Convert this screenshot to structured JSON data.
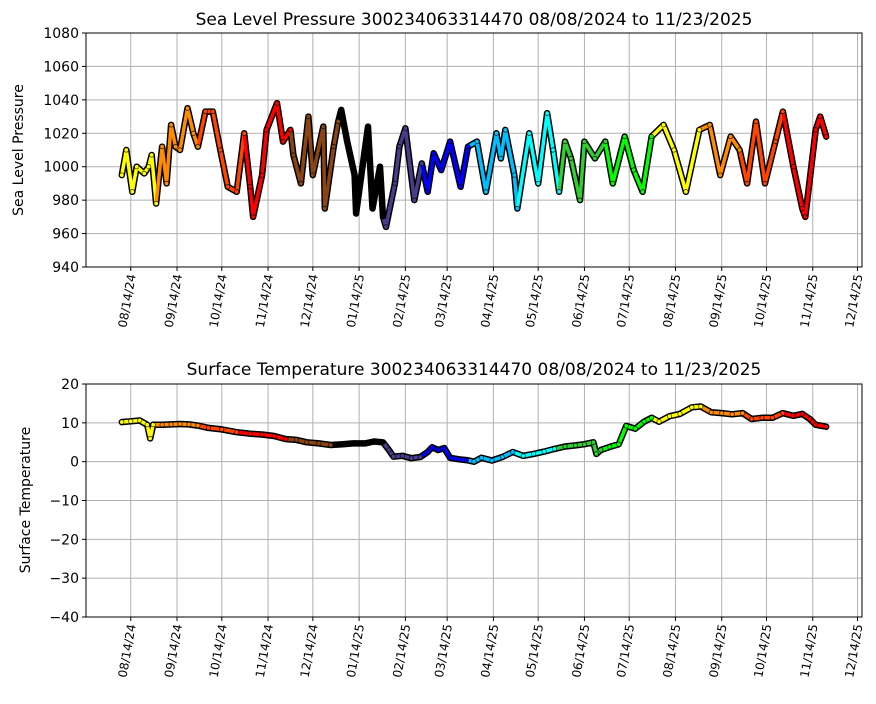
{
  "chart_data": [
    {
      "type": "scatter",
      "title": "Sea Level Pressure 300234063314470  08/08/2024 to 11/23/2025",
      "xlabel": "",
      "ylabel": "Sea Level Pressure",
      "ylim": [
        940,
        1080
      ],
      "yticks": [
        940,
        960,
        980,
        1000,
        1020,
        1040,
        1060,
        1080
      ],
      "xlim": [
        "2024-07-15",
        "2025-12-17"
      ],
      "grid": true,
      "points": [
        [
          "2024-08-08",
          995
        ],
        [
          "2024-08-11",
          1010
        ],
        [
          "2024-08-15",
          985
        ],
        [
          "2024-08-18",
          1000
        ],
        [
          "2024-08-23",
          996
        ],
        [
          "2024-08-26",
          1000
        ],
        [
          "2024-08-28",
          1007
        ],
        [
          "2024-08-31",
          978
        ],
        [
          "2024-09-04",
          1012
        ],
        [
          "2024-09-07",
          990
        ],
        [
          "2024-09-10",
          1025
        ],
        [
          "2024-09-13",
          1012
        ],
        [
          "2024-09-16",
          1010
        ],
        [
          "2024-09-21",
          1035
        ],
        [
          "2024-09-25",
          1020
        ],
        [
          "2024-09-28",
          1012
        ],
        [
          "2024-10-03",
          1033
        ],
        [
          "2024-10-08",
          1033
        ],
        [
          "2024-10-13",
          1010
        ],
        [
          "2024-10-18",
          988
        ],
        [
          "2024-10-24",
          985
        ],
        [
          "2024-10-29",
          1020
        ],
        [
          "2024-11-02",
          988
        ],
        [
          "2024-11-04",
          970
        ],
        [
          "2024-11-10",
          995
        ],
        [
          "2024-11-13",
          1022
        ],
        [
          "2024-11-20",
          1038
        ],
        [
          "2024-11-24",
          1015
        ],
        [
          "2024-11-29",
          1022
        ],
        [
          "2024-12-01",
          1007
        ],
        [
          "2024-12-06",
          990
        ],
        [
          "2024-12-11",
          1030
        ],
        [
          "2024-12-14",
          995
        ],
        [
          "2024-12-21",
          1024
        ],
        [
          "2024-12-22",
          975
        ],
        [
          "2024-12-28",
          1012
        ],
        [
          "2024-12-31",
          1027
        ],
        [
          "2025-01-02",
          1034
        ],
        [
          "2025-01-06",
          1015
        ],
        [
          "2025-01-11",
          995
        ],
        [
          "2025-01-12",
          972
        ],
        [
          "2025-01-20",
          1024
        ],
        [
          "2025-01-23",
          975
        ],
        [
          "2025-01-28",
          1000
        ],
        [
          "2025-01-30",
          970
        ],
        [
          "2025-02-01",
          964
        ],
        [
          "2025-02-07",
          990
        ],
        [
          "2025-02-10",
          1012
        ],
        [
          "2025-02-14",
          1023
        ],
        [
          "2025-02-20",
          980
        ],
        [
          "2025-02-25",
          1002
        ],
        [
          "2025-03-01",
          985
        ],
        [
          "2025-03-05",
          1008
        ],
        [
          "2025-03-10",
          998
        ],
        [
          "2025-03-16",
          1015
        ],
        [
          "2025-03-23",
          988
        ],
        [
          "2025-03-28",
          1012
        ],
        [
          "2025-04-03",
          1015
        ],
        [
          "2025-04-09",
          985
        ],
        [
          "2025-04-16",
          1020
        ],
        [
          "2025-04-19",
          1005
        ],
        [
          "2025-04-22",
          1022
        ],
        [
          "2025-04-28",
          995
        ],
        [
          "2025-04-30",
          975
        ],
        [
          "2025-05-08",
          1020
        ],
        [
          "2025-05-14",
          990
        ],
        [
          "2025-05-20",
          1032
        ],
        [
          "2025-05-24",
          1010
        ],
        [
          "2025-05-28",
          985
        ],
        [
          "2025-06-01",
          1015
        ],
        [
          "2025-06-05",
          1005
        ],
        [
          "2025-06-11",
          980
        ],
        [
          "2025-06-14",
          1015
        ],
        [
          "2025-06-21",
          1005
        ],
        [
          "2025-06-28",
          1015
        ],
        [
          "2025-07-03",
          990
        ],
        [
          "2025-07-11",
          1018
        ],
        [
          "2025-07-17",
          998
        ],
        [
          "2025-07-23",
          985
        ],
        [
          "2025-07-29",
          1018
        ],
        [
          "2025-08-06",
          1025
        ],
        [
          "2025-08-13",
          1010
        ],
        [
          "2025-08-21",
          985
        ],
        [
          "2025-08-30",
          1022
        ],
        [
          "2025-09-06",
          1025
        ],
        [
          "2025-09-13",
          995
        ],
        [
          "2025-09-20",
          1018
        ],
        [
          "2025-09-26",
          1010
        ],
        [
          "2025-10-01",
          990
        ],
        [
          "2025-10-07",
          1027
        ],
        [
          "2025-10-13",
          990
        ],
        [
          "2025-10-20",
          1015
        ],
        [
          "2025-10-25",
          1033
        ],
        [
          "2025-11-01",
          1000
        ],
        [
          "2025-11-07",
          975
        ],
        [
          "2025-11-09",
          970
        ],
        [
          "2025-11-16",
          1022
        ],
        [
          "2025-11-19",
          1030
        ],
        [
          "2025-11-23",
          1018
        ]
      ]
    },
    {
      "type": "scatter",
      "title": "Surface Temperature 300234063314470  08/08/2024 to 11/23/2025",
      "xlabel": "",
      "ylabel": "Surface Temperature",
      "ylim": [
        -40,
        20
      ],
      "yticks": [
        -40,
        -30,
        -20,
        -10,
        0,
        10,
        20
      ],
      "xlim": [
        "2024-07-15",
        "2025-12-17"
      ],
      "grid": true,
      "points": [
        [
          "2024-08-08",
          10.2
        ],
        [
          "2024-08-14",
          10.4
        ],
        [
          "2024-08-20",
          10.6
        ],
        [
          "2024-08-25",
          9.5
        ],
        [
          "2024-08-27",
          6.0
        ],
        [
          "2024-08-29",
          9.5
        ],
        [
          "2024-09-04",
          9.5
        ],
        [
          "2024-09-10",
          9.6
        ],
        [
          "2024-09-16",
          9.7
        ],
        [
          "2024-09-22",
          9.6
        ],
        [
          "2024-09-28",
          9.3
        ],
        [
          "2024-10-05",
          8.7
        ],
        [
          "2024-10-14",
          8.3
        ],
        [
          "2024-10-24",
          7.6
        ],
        [
          "2024-11-02",
          7.2
        ],
        [
          "2024-11-10",
          7.0
        ],
        [
          "2024-11-18",
          6.6
        ],
        [
          "2024-11-26",
          5.8
        ],
        [
          "2024-12-03",
          5.6
        ],
        [
          "2024-12-10",
          5.0
        ],
        [
          "2024-12-18",
          4.7
        ],
        [
          "2024-12-26",
          4.3
        ],
        [
          "2025-01-03",
          4.5
        ],
        [
          "2025-01-10",
          4.7
        ],
        [
          "2025-01-18",
          4.7
        ],
        [
          "2025-01-24",
          5.2
        ],
        [
          "2025-01-30",
          5.0
        ],
        [
          "2025-02-03",
          3.0
        ],
        [
          "2025-02-06",
          1.3
        ],
        [
          "2025-02-12",
          1.5
        ],
        [
          "2025-02-18",
          0.9
        ],
        [
          "2025-02-24",
          1.2
        ],
        [
          "2025-03-01",
          2.5
        ],
        [
          "2025-03-04",
          3.7
        ],
        [
          "2025-03-08",
          3.0
        ],
        [
          "2025-03-12",
          3.5
        ],
        [
          "2025-03-16",
          1.0
        ],
        [
          "2025-03-22",
          0.6
        ],
        [
          "2025-03-27",
          0.4
        ],
        [
          "2025-04-01",
          0.0
        ],
        [
          "2025-04-06",
          1.0
        ],
        [
          "2025-04-13",
          0.3
        ],
        [
          "2025-04-20",
          1.2
        ],
        [
          "2025-04-27",
          2.5
        ],
        [
          "2025-05-04",
          1.5
        ],
        [
          "2025-05-11",
          2.0
        ],
        [
          "2025-05-18",
          2.6
        ],
        [
          "2025-05-25",
          3.3
        ],
        [
          "2025-06-01",
          3.9
        ],
        [
          "2025-06-08",
          4.2
        ],
        [
          "2025-06-14",
          4.5
        ],
        [
          "2025-06-20",
          5.0
        ],
        [
          "2025-06-22",
          2.0
        ],
        [
          "2025-06-25",
          3.0
        ],
        [
          "2025-07-01",
          3.8
        ],
        [
          "2025-07-07",
          4.5
        ],
        [
          "2025-07-12",
          9.2
        ],
        [
          "2025-07-18",
          8.5
        ],
        [
          "2025-07-24",
          10.3
        ],
        [
          "2025-07-29",
          11.3
        ],
        [
          "2025-08-03",
          10.3
        ],
        [
          "2025-08-10",
          11.7
        ],
        [
          "2025-08-17",
          12.3
        ],
        [
          "2025-08-25",
          14.0
        ],
        [
          "2025-08-31",
          14.2
        ],
        [
          "2025-09-07",
          12.7
        ],
        [
          "2025-09-14",
          12.5
        ],
        [
          "2025-09-21",
          12.2
        ],
        [
          "2025-09-28",
          12.5
        ],
        [
          "2025-10-04",
          11.0
        ],
        [
          "2025-10-11",
          11.3
        ],
        [
          "2025-10-18",
          11.3
        ],
        [
          "2025-10-25",
          12.5
        ],
        [
          "2025-11-01",
          11.8
        ],
        [
          "2025-11-07",
          12.3
        ],
        [
          "2025-11-12",
          11.0
        ],
        [
          "2025-11-16",
          9.5
        ],
        [
          "2025-11-23",
          9.0
        ]
      ]
    }
  ],
  "xticks": [
    {
      "date": "2024-08-14",
      "label": "08/14/24"
    },
    {
      "date": "2024-09-14",
      "label": "09/14/24"
    },
    {
      "date": "2024-10-14",
      "label": "10/14/24"
    },
    {
      "date": "2024-11-14",
      "label": "11/14/24"
    },
    {
      "date": "2024-12-14",
      "label": "12/14/24"
    },
    {
      "date": "2025-01-14",
      "label": "01/14/25"
    },
    {
      "date": "2025-02-14",
      "label": "02/14/25"
    },
    {
      "date": "2025-03-14",
      "label": "03/14/25"
    },
    {
      "date": "2025-04-14",
      "label": "04/14/25"
    },
    {
      "date": "2025-05-14",
      "label": "05/14/25"
    },
    {
      "date": "2025-06-14",
      "label": "06/14/25"
    },
    {
      "date": "2025-07-14",
      "label": "07/14/25"
    },
    {
      "date": "2025-08-14",
      "label": "08/14/25"
    },
    {
      "date": "2025-09-14",
      "label": "09/14/25"
    },
    {
      "date": "2025-10-14",
      "label": "10/14/25"
    },
    {
      "date": "2025-11-14",
      "label": "11/14/25"
    },
    {
      "date": "2025-12-14",
      "label": "12/14/25"
    }
  ],
  "month_colors": {
    "2024-08": "#ffff00",
    "2024-09": "#ff8c00",
    "2024-10": "#ff4500",
    "2024-11": "#ff0000",
    "2024-12": "#8b4513",
    "2025-01": "#000000",
    "2025-02": "#483d8b",
    "2025-03": "#0000ff",
    "2025-04": "#00bfff",
    "2025-05": "#00ffff",
    "2025-06": "#32cd32",
    "2025-07": "#00ff00",
    "2025-08": "#ffff00",
    "2025-09": "#ff8c00",
    "2025-10": "#ff4500",
    "2025-11": "#ff0000"
  },
  "grid_color": "#b0b0b0"
}
